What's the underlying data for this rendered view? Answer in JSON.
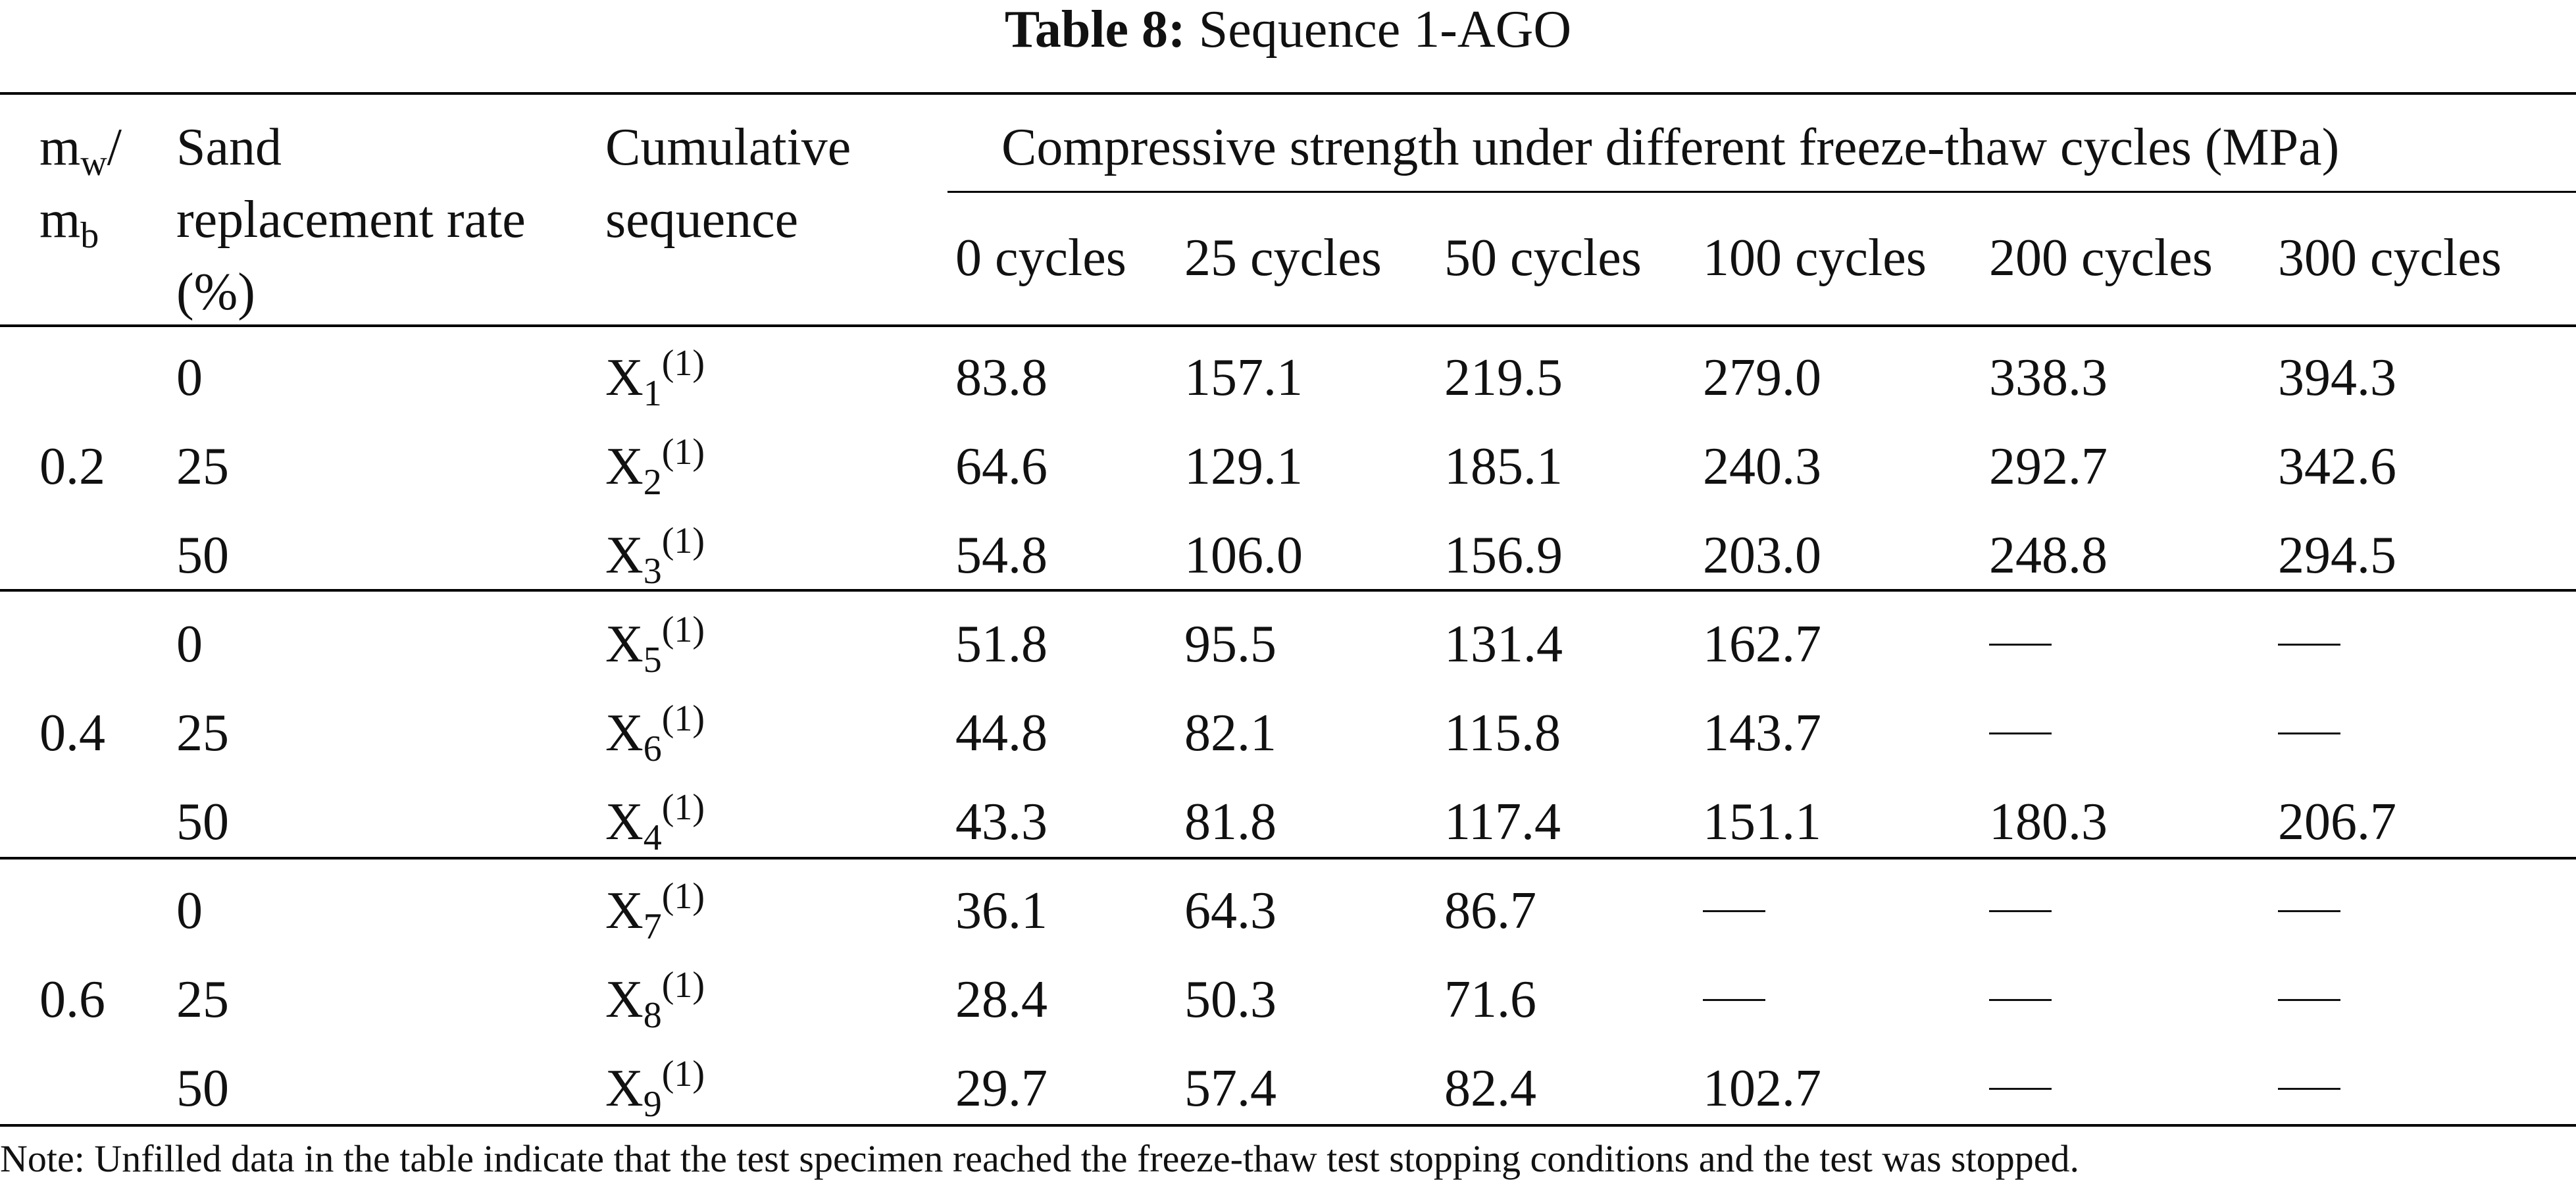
{
  "caption": {
    "label": "Table 8:",
    "title": "Sequence 1-AGO"
  },
  "header": {
    "ratio_main": "m",
    "ratio_sub_w": "w",
    "ratio_slash": "/",
    "ratio_main2": "m",
    "ratio_sub_b": "b",
    "sand_line1": "Sand",
    "sand_line2": "replacement rate",
    "sand_line3": "(%)",
    "seq_line1": "Cumulative",
    "seq_line2": "sequence",
    "group_title": "Compressive strength under different freeze-thaw cycles (MPa)",
    "cycles": [
      "0 cycles",
      "25 cycles",
      "50 cycles",
      "100 cycles",
      "200 cycles",
      "300 cycles"
    ]
  },
  "groups": [
    {
      "ratio": "0.2",
      "rows": [
        {
          "sand": "0",
          "seq_base": "X",
          "seq_sub": "1",
          "seq_sup": "(1)",
          "values": [
            "83.8",
            "157.1",
            "219.5",
            "279.0",
            "338.3",
            "394.3"
          ]
        },
        {
          "sand": "25",
          "seq_base": "X",
          "seq_sub": "2",
          "seq_sup": "(1)",
          "values": [
            "64.6",
            "129.1",
            "185.1",
            "240.3",
            "292.7",
            "342.6"
          ]
        },
        {
          "sand": "50",
          "seq_base": "X",
          "seq_sub": "3",
          "seq_sup": "(1)",
          "values": [
            "54.8",
            "106.0",
            "156.9",
            "203.0",
            "248.8",
            "294.5"
          ]
        }
      ]
    },
    {
      "ratio": "0.4",
      "rows": [
        {
          "sand": "0",
          "seq_base": "X",
          "seq_sub": "5",
          "seq_sup": "(1)",
          "values": [
            "51.8",
            "95.5",
            "131.4",
            "162.7",
            null,
            null
          ]
        },
        {
          "sand": "25",
          "seq_base": "X",
          "seq_sub": "6",
          "seq_sup": "(1)",
          "values": [
            "44.8",
            "82.1",
            "115.8",
            "143.7",
            null,
            null
          ]
        },
        {
          "sand": "50",
          "seq_base": "X",
          "seq_sub": "4",
          "seq_sup": "(1)",
          "values": [
            "43.3",
            "81.8",
            "117.4",
            "151.1",
            "180.3",
            "206.7"
          ]
        }
      ]
    },
    {
      "ratio": "0.6",
      "rows": [
        {
          "sand": "0",
          "seq_base": "X",
          "seq_sub": "7",
          "seq_sup": "(1)",
          "values": [
            "36.1",
            "64.3",
            "86.7",
            null,
            null,
            null
          ]
        },
        {
          "sand": "25",
          "seq_base": "X",
          "seq_sub": "8",
          "seq_sup": "(1)",
          "values": [
            "28.4",
            "50.3",
            "71.6",
            null,
            null,
            null
          ]
        },
        {
          "sand": "50",
          "seq_base": "X",
          "seq_sub": "9",
          "seq_sup": "(1)",
          "values": [
            "29.7",
            "57.4",
            "82.4",
            "102.7",
            null,
            null
          ]
        }
      ]
    }
  ],
  "note": "Note: Unfilled data in the table indicate that the test specimen reached the freeze-thaw test stopping conditions and the test was stopped."
}
